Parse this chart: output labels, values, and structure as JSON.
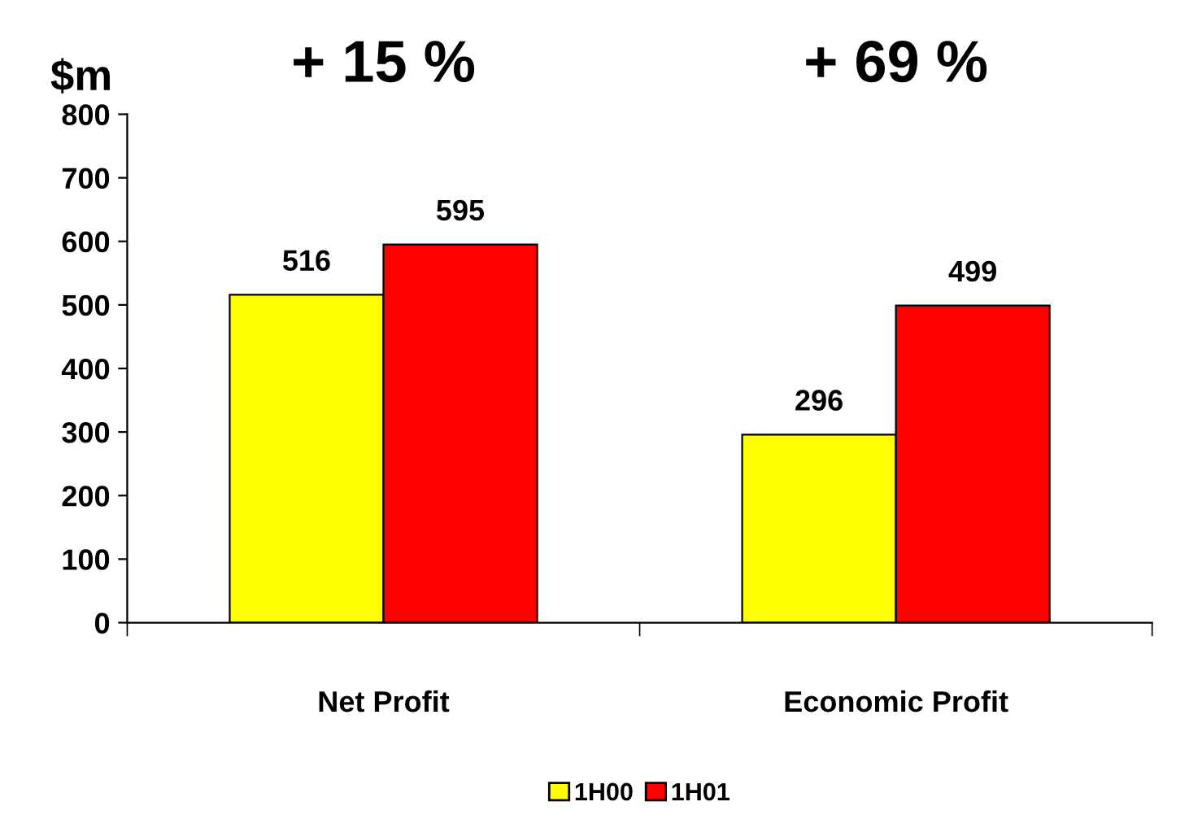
{
  "chart_data": {
    "type": "bar",
    "ylabel": "$m",
    "categories": [
      "Net Profit",
      "Economic Profit"
    ],
    "series": [
      {
        "name": "1H00",
        "color": "#ffff00",
        "values": [
          516,
          296
        ]
      },
      {
        "name": "1H01",
        "color": "#ff0000",
        "values": [
          595,
          499
        ]
      }
    ],
    "ylim": [
      0,
      800
    ],
    "yticks": [
      0,
      100,
      200,
      300,
      400,
      500,
      600,
      700,
      800
    ],
    "data_labels": true,
    "grid": false,
    "legend": "bottom",
    "annotations": [
      "+ 15 %",
      "+ 69 %"
    ]
  }
}
